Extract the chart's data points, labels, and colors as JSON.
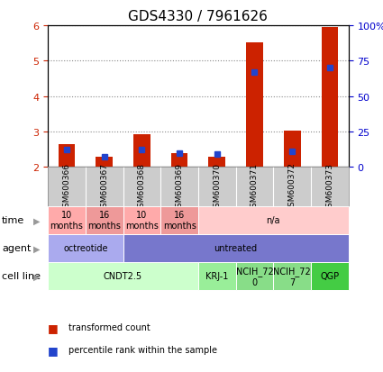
{
  "title": "GDS4330 / 7961626",
  "samples": [
    "GSM600366",
    "GSM600367",
    "GSM600368",
    "GSM600369",
    "GSM600370",
    "GSM600371",
    "GSM600372",
    "GSM600373"
  ],
  "transformed_count": [
    2.65,
    2.28,
    2.92,
    2.4,
    2.3,
    5.52,
    3.03,
    5.95
  ],
  "percentile_rank_pct": [
    12,
    7,
    12,
    10,
    9,
    67,
    11,
    70
  ],
  "ylim_left": [
    2.0,
    6.0
  ],
  "ylim_right": [
    0,
    100
  ],
  "yticks_left": [
    2,
    3,
    4,
    5,
    6
  ],
  "yticks_right": [
    0,
    25,
    50,
    75,
    100
  ],
  "ytick_labels_right": [
    "0",
    "25",
    "50",
    "75",
    "100%"
  ],
  "bar_color": "#cc2200",
  "pct_color": "#2244cc",
  "cell_line_groups": [
    {
      "label": "CNDT2.5",
      "start": 0,
      "end": 4,
      "color": "#ccffcc"
    },
    {
      "label": "KRJ-1",
      "start": 4,
      "end": 5,
      "color": "#99ee99"
    },
    {
      "label": "NCIH_72\n0",
      "start": 5,
      "end": 6,
      "color": "#88dd88"
    },
    {
      "label": "NCIH_72\n7",
      "start": 6,
      "end": 7,
      "color": "#88dd88"
    },
    {
      "label": "QGP",
      "start": 7,
      "end": 8,
      "color": "#44cc44"
    }
  ],
  "agent_groups": [
    {
      "label": "octreotide",
      "start": 0,
      "end": 2,
      "color": "#aaaaee"
    },
    {
      "label": "untreated",
      "start": 2,
      "end": 8,
      "color": "#7777cc"
    }
  ],
  "time_groups": [
    {
      "label": "10\nmonths",
      "start": 0,
      "end": 1,
      "color": "#ffaaaa"
    },
    {
      "label": "16\nmonths",
      "start": 1,
      "end": 2,
      "color": "#ee9999"
    },
    {
      "label": "10\nmonths",
      "start": 2,
      "end": 3,
      "color": "#ffaaaa"
    },
    {
      "label": "16\nmonths",
      "start": 3,
      "end": 4,
      "color": "#ee9999"
    },
    {
      "label": "n/a",
      "start": 4,
      "end": 8,
      "color": "#ffcccc"
    }
  ],
  "row_labels": [
    "cell line",
    "agent",
    "time"
  ],
  "legend_items": [
    {
      "label": "transformed count",
      "color": "#cc2200"
    },
    {
      "label": "percentile rank within the sample",
      "color": "#2244cc"
    }
  ],
  "left_axis_color": "#cc2200",
  "right_axis_color": "#0000cc",
  "grid_color": "#888888",
  "sample_box_color": "#cccccc",
  "bar_width": 0.45
}
